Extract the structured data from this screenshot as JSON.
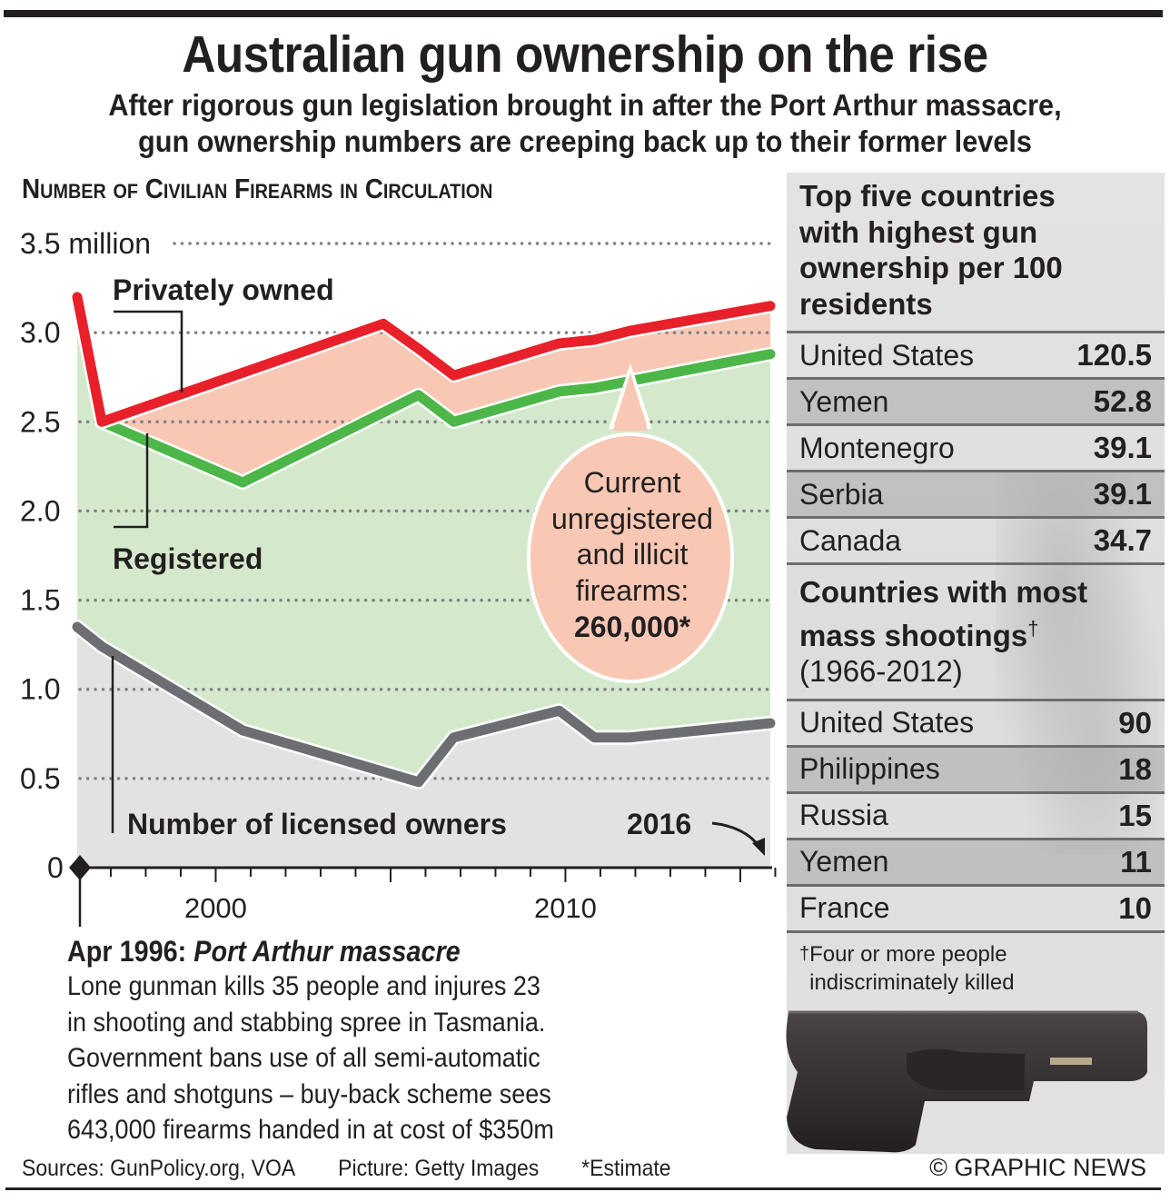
{
  "header": {
    "title": "Australian gun ownership on the rise",
    "subtitle_line1": "After rigorous gun legislation brought in after the Port Arthur massacre,",
    "subtitle_line2": "gun ownership numbers are creeping back up to their former levels"
  },
  "chart_data": {
    "type": "line",
    "title": "Number of Civilian Firearms in Circulation",
    "xlabel": "",
    "ylabel": "",
    "ylim": [
      0,
      3.5
    ],
    "xlim": [
      1996.3,
      2016
    ],
    "y_ticks": [
      {
        "value": 3.5,
        "label": "3.5 million"
      },
      {
        "value": 3.0,
        "label": "3.0"
      },
      {
        "value": 2.5,
        "label": "2.5"
      },
      {
        "value": 2.0,
        "label": "2.0"
      },
      {
        "value": 1.5,
        "label": "1.5"
      },
      {
        "value": 1.0,
        "label": "1.0"
      },
      {
        "value": 0.5,
        "label": "0.5"
      },
      {
        "value": 0,
        "label": "0"
      }
    ],
    "x_tick_labels": [
      {
        "value": 2000,
        "label": "2000"
      },
      {
        "value": 2010,
        "label": "2010"
      }
    ],
    "grid": true,
    "series": [
      {
        "name": "Privately owned",
        "color": "#e8202a",
        "x": [
          1996.3,
          1997,
          2005,
          2006,
          2007,
          2010,
          2011,
          2012,
          2016
        ],
        "y": [
          3.2,
          2.5,
          3.05,
          2.91,
          2.76,
          2.94,
          2.96,
          3.01,
          3.15
        ]
      },
      {
        "name": "Registered",
        "color": "#4cb748",
        "x": [
          1996.3,
          1997,
          2001,
          2006,
          2007,
          2010,
          2011,
          2016
        ],
        "y": [
          3.0,
          2.5,
          2.16,
          2.65,
          2.5,
          2.67,
          2.69,
          2.88
        ]
      },
      {
        "name": "Number of licensed owners",
        "color": "#6d6e71",
        "x": [
          1996.3,
          1997,
          2001,
          2006,
          2007,
          2010,
          2011,
          2012,
          2016
        ],
        "y": [
          1.35,
          1.24,
          0.77,
          0.48,
          0.73,
          0.88,
          0.73,
          0.73,
          0.81
        ]
      }
    ],
    "fills": {
      "unregistered": "#f8c8b4",
      "registered": "#d4e9cc",
      "licensed": "#e3e2e3"
    },
    "annotations": {
      "privately_owned": "Privately owned",
      "registered": "Registered",
      "licensed_owners": "Number of licensed owners",
      "end_year": "2016",
      "bubble_line1": "Current",
      "bubble_line2": "unregistered",
      "bubble_line3": "and illicit",
      "bubble_line4": "firearms:",
      "bubble_value": "260,000*"
    }
  },
  "event": {
    "date": "Apr 1996:",
    "name": "Port Arthur massacre",
    "lines": [
      "Lone gunman kills 35 people and injures 23",
      "in shooting and stabbing spree in Tasmania.",
      "Government bans use of all semi-automatic",
      "rifles and shotguns – buy-back scheme sees",
      "643,000 firearms handed in at cost of $350m"
    ]
  },
  "sidebar": {
    "ownership": {
      "heading": "Top five countries with highest gun ownership per 100 residents",
      "rows": [
        {
          "country": "United States",
          "value": "120.5"
        },
        {
          "country": "Yemen",
          "value": "52.8"
        },
        {
          "country": "Montenegro",
          "value": "39.1"
        },
        {
          "country": "Serbia",
          "value": "39.1"
        },
        {
          "country": "Canada",
          "value": "34.7"
        }
      ]
    },
    "shootings": {
      "heading": "Countries with most mass shootings",
      "dagger": "†",
      "period": "(1966-2012)",
      "rows": [
        {
          "country": "United States",
          "value": "90"
        },
        {
          "country": "Philippines",
          "value": "18"
        },
        {
          "country": "Russia",
          "value": "15"
        },
        {
          "country": "Yemen",
          "value": "11"
        },
        {
          "country": "France",
          "value": "10"
        }
      ]
    },
    "footnote_mark": "†",
    "footnote_text": "Four or more people indiscriminately killed",
    "image": "handgun-photo"
  },
  "footer": {
    "sources": "Sources: GunPolicy.org, VOA",
    "picture": "Picture: Getty Images",
    "estimate": "*Estimate",
    "credit": "© GRAPHIC NEWS"
  }
}
